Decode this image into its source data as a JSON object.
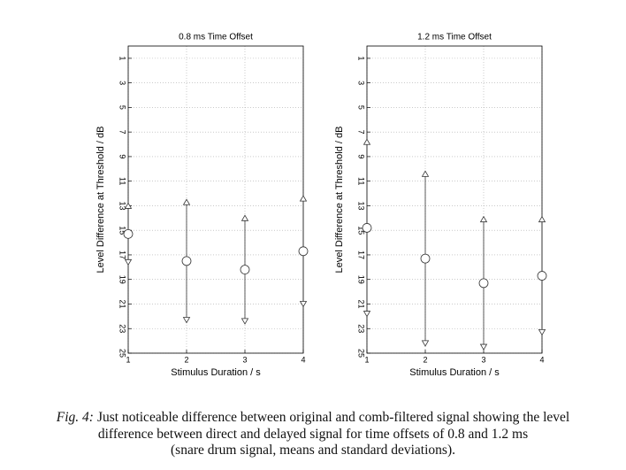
{
  "chart_data": [
    {
      "type": "errorbar",
      "title": "0.8 ms Time Offset",
      "xlabel": "Stimulus Duration / s",
      "ylabel": "Level Difference at Threshold / dB",
      "x": [
        1,
        2,
        3,
        4
      ],
      "values": [
        15.3,
        17.5,
        18.2,
        16.7
      ],
      "errors": [
        2.3,
        4.8,
        4.2,
        4.3
      ],
      "xlim": [
        1,
        4
      ],
      "xticks": [
        1,
        2,
        3,
        4
      ],
      "ylim": [
        0,
        25
      ],
      "y_inverted": true,
      "yticks": [
        1,
        3,
        5,
        7,
        9,
        11,
        13,
        15,
        17,
        19,
        21,
        23,
        25
      ],
      "grid": true,
      "color": "#333333"
    },
    {
      "type": "errorbar",
      "title": "1.2 ms Time Offset",
      "xlabel": "Stimulus Duration / s",
      "ylabel": "Level Difference at Threshold / dB",
      "x": [
        1,
        2,
        3,
        4
      ],
      "values": [
        14.8,
        17.3,
        19.3,
        18.7
      ],
      "errors": [
        7.0,
        6.9,
        5.2,
        4.6
      ],
      "xlim": [
        1,
        4
      ],
      "xticks": [
        1,
        2,
        3,
        4
      ],
      "ylim": [
        0,
        25
      ],
      "y_inverted": true,
      "yticks": [
        1,
        3,
        5,
        7,
        9,
        11,
        13,
        15,
        17,
        19,
        21,
        23,
        25
      ],
      "grid": true,
      "color": "#333333"
    }
  ],
  "caption_label": "Fig. 4:",
  "caption_lines": [
    "Just noticeable difference between original and comb-filtered signal showing the level",
    "difference between direct and delayed signal for time offsets of 0.8 and 1.2 ms",
    "(snare drum signal, means and standard deviations)."
  ]
}
